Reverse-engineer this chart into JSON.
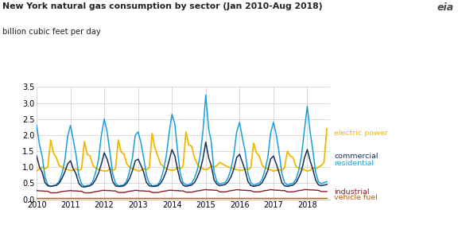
{
  "title": "New York natural gas consumption by sector (Jan 2010-Aug 2018)",
  "ylabel": "billion cubic feet per day",
  "ylim": [
    0,
    3.5
  ],
  "yticks": [
    0.0,
    0.5,
    1.0,
    1.5,
    2.0,
    2.5,
    3.0,
    3.5
  ],
  "bg_color": "#ffffff",
  "grid_color": "#cccccc",
  "colors": {
    "residential": "#1a9fda",
    "commercial": "#1a2f5a",
    "electric_power": "#f0b800",
    "industrial": "#8b1a2a",
    "vehicle_fuel": "#b06010"
  },
  "residential": [
    2.3,
    1.7,
    1.35,
    0.7,
    0.45,
    0.4,
    0.42,
    0.45,
    0.55,
    0.8,
    1.2,
    1.95,
    2.3,
    1.85,
    1.4,
    0.75,
    0.48,
    0.4,
    0.43,
    0.44,
    0.57,
    0.85,
    1.25,
    2.0,
    2.5,
    2.1,
    1.5,
    0.8,
    0.5,
    0.42,
    0.43,
    0.45,
    0.58,
    0.88,
    1.3,
    2.0,
    2.1,
    1.75,
    1.3,
    0.75,
    0.5,
    0.42,
    0.43,
    0.45,
    0.6,
    0.9,
    1.35,
    2.05,
    2.65,
    2.35,
    1.55,
    0.8,
    0.52,
    0.45,
    0.45,
    0.5,
    0.65,
    0.9,
    1.35,
    2.1,
    3.25,
    2.2,
    1.8,
    0.85,
    0.55,
    0.47,
    0.5,
    0.52,
    0.68,
    0.95,
    1.4,
    2.1,
    2.4,
    1.9,
    1.5,
    0.8,
    0.52,
    0.44,
    0.47,
    0.5,
    0.62,
    0.9,
    1.3,
    2.05,
    2.4,
    2.0,
    1.5,
    0.82,
    0.52,
    0.44,
    0.47,
    0.5,
    0.62,
    0.9,
    1.38,
    2.15,
    2.9,
    2.1,
    1.55,
    0.85,
    0.55,
    0.48,
    0.52,
    0.55
  ],
  "commercial": [
    1.35,
    1.0,
    0.85,
    0.52,
    0.42,
    0.4,
    0.42,
    0.43,
    0.5,
    0.65,
    0.85,
    1.1,
    1.2,
    0.95,
    0.8,
    0.5,
    0.4,
    0.38,
    0.4,
    0.42,
    0.48,
    0.62,
    0.82,
    1.1,
    1.45,
    1.25,
    0.95,
    0.55,
    0.42,
    0.4,
    0.4,
    0.42,
    0.5,
    0.65,
    0.9,
    1.2,
    1.25,
    1.05,
    0.85,
    0.52,
    0.42,
    0.4,
    0.4,
    0.42,
    0.5,
    0.65,
    0.88,
    1.2,
    1.55,
    1.35,
    0.95,
    0.58,
    0.44,
    0.4,
    0.42,
    0.44,
    0.52,
    0.68,
    0.9,
    1.25,
    1.78,
    1.3,
    1.05,
    0.6,
    0.47,
    0.42,
    0.44,
    0.46,
    0.55,
    0.7,
    0.95,
    1.3,
    1.4,
    1.15,
    0.9,
    0.55,
    0.43,
    0.4,
    0.42,
    0.44,
    0.52,
    0.68,
    0.9,
    1.25,
    1.35,
    1.1,
    0.85,
    0.52,
    0.42,
    0.4,
    0.42,
    0.44,
    0.52,
    0.68,
    0.9,
    1.28,
    1.55,
    1.2,
    0.95,
    0.6,
    0.45,
    0.42,
    0.44,
    0.46
  ],
  "electric_power": [
    0.88,
    0.95,
    1.0,
    0.95,
    1.0,
    1.85,
    1.45,
    1.3,
    1.05,
    1.0,
    0.95,
    0.92,
    0.9,
    0.9,
    0.95,
    0.9,
    0.95,
    1.8,
    1.4,
    1.35,
    1.05,
    0.98,
    0.92,
    0.9,
    0.88,
    0.88,
    0.95,
    0.9,
    0.95,
    1.85,
    1.48,
    1.4,
    1.1,
    1.0,
    0.95,
    0.92,
    0.88,
    0.9,
    0.95,
    0.92,
    0.98,
    2.05,
    1.6,
    1.35,
    1.1,
    1.02,
    0.95,
    0.92,
    0.9,
    0.92,
    1.0,
    0.95,
    1.02,
    2.1,
    1.7,
    1.65,
    1.3,
    1.1,
    0.98,
    0.95,
    0.92,
    0.95,
    1.05,
    1.0,
    1.05,
    1.15,
    1.1,
    1.05,
    1.0,
    0.98,
    0.95,
    0.92,
    0.9,
    0.9,
    0.95,
    0.92,
    0.98,
    1.75,
    1.45,
    1.35,
    1.05,
    0.98,
    0.95,
    0.92,
    0.88,
    0.9,
    0.92,
    0.9,
    0.98,
    1.5,
    1.35,
    1.3,
    1.02,
    0.98,
    0.95,
    0.92,
    0.88,
    0.9,
    0.98,
    0.95,
    1.0,
    1.05,
    1.15,
    2.2
  ],
  "industrial": [
    0.27,
    0.26,
    0.26,
    0.25,
    0.25,
    0.2,
    0.2,
    0.2,
    0.22,
    0.24,
    0.25,
    0.26,
    0.27,
    0.26,
    0.26,
    0.25,
    0.25,
    0.2,
    0.2,
    0.2,
    0.22,
    0.24,
    0.25,
    0.27,
    0.28,
    0.27,
    0.27,
    0.26,
    0.26,
    0.21,
    0.21,
    0.21,
    0.23,
    0.25,
    0.26,
    0.28,
    0.27,
    0.26,
    0.26,
    0.25,
    0.25,
    0.21,
    0.21,
    0.21,
    0.23,
    0.25,
    0.26,
    0.28,
    0.28,
    0.27,
    0.27,
    0.26,
    0.26,
    0.22,
    0.22,
    0.22,
    0.24,
    0.26,
    0.27,
    0.29,
    0.3,
    0.29,
    0.29,
    0.28,
    0.28,
    0.23,
    0.23,
    0.23,
    0.25,
    0.27,
    0.28,
    0.3,
    0.29,
    0.28,
    0.28,
    0.27,
    0.27,
    0.23,
    0.23,
    0.23,
    0.25,
    0.27,
    0.28,
    0.3,
    0.29,
    0.28,
    0.28,
    0.27,
    0.27,
    0.23,
    0.23,
    0.23,
    0.25,
    0.27,
    0.28,
    0.3,
    0.3,
    0.29,
    0.29,
    0.28,
    0.28,
    0.24,
    0.24,
    0.24
  ],
  "vehicle_fuel": [
    0.03,
    0.03,
    0.03,
    0.03,
    0.03,
    0.03,
    0.03,
    0.03,
    0.03,
    0.03,
    0.03,
    0.03,
    0.03,
    0.03,
    0.03,
    0.03,
    0.03,
    0.03,
    0.03,
    0.03,
    0.03,
    0.03,
    0.03,
    0.03,
    0.03,
    0.03,
    0.03,
    0.03,
    0.03,
    0.03,
    0.03,
    0.03,
    0.03,
    0.03,
    0.03,
    0.03,
    0.03,
    0.03,
    0.03,
    0.03,
    0.03,
    0.03,
    0.03,
    0.03,
    0.03,
    0.03,
    0.03,
    0.03,
    0.03,
    0.03,
    0.03,
    0.03,
    0.03,
    0.03,
    0.03,
    0.03,
    0.03,
    0.03,
    0.03,
    0.03,
    0.03,
    0.03,
    0.03,
    0.03,
    0.03,
    0.03,
    0.03,
    0.03,
    0.03,
    0.03,
    0.03,
    0.03,
    0.03,
    0.03,
    0.03,
    0.03,
    0.03,
    0.03,
    0.03,
    0.03,
    0.03,
    0.03,
    0.03,
    0.03,
    0.03,
    0.03,
    0.03,
    0.03,
    0.03,
    0.03,
    0.03,
    0.03,
    0.03,
    0.03,
    0.03,
    0.03,
    0.03,
    0.03,
    0.03,
    0.03,
    0.03,
    0.03,
    0.03,
    0.03
  ]
}
